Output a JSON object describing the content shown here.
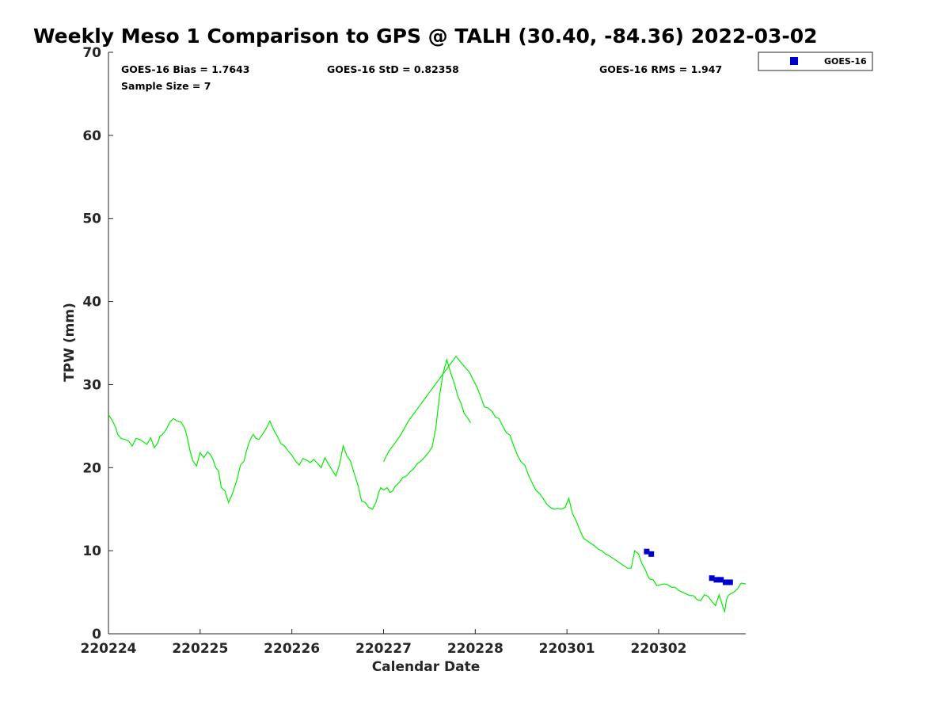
{
  "chart_data": {
    "type": "line",
    "title": "Weekly Meso 1 Comparison to GPS @ TALH (30.40, -84.36) 2022-03-02",
    "xlabel": "Calendar Date",
    "ylabel": "TPW (mm)",
    "x_tick_labels": [
      "220224",
      "220225",
      "220226",
      "220227",
      "220228",
      "220301",
      "220302"
    ],
    "x_tick_days": [
      0,
      1,
      2,
      3,
      4,
      5,
      6
    ],
    "xlim_days": [
      0,
      6.95
    ],
    "ylim": [
      0,
      70
    ],
    "y_ticks": [
      0,
      10,
      20,
      30,
      40,
      50,
      60,
      70
    ],
    "stats": {
      "bias": "GOES-16 Bias = 1.7643",
      "std": "GOES-16 StD = 0.82358",
      "rms": "GOES-16 RMS = 1.947",
      "sample": "Sample Size = 7"
    },
    "legend": {
      "label": "GOES-16",
      "placement": "top-right outside"
    },
    "colors": {
      "gps_line": "#00ee00",
      "goes_marker": "#0000cc",
      "axis": "#262626"
    },
    "series": [
      {
        "role": "gps",
        "x_days": [
          0.0,
          0.04,
          0.08,
          0.1,
          0.14,
          0.18,
          0.22,
          0.26,
          0.3,
          0.34,
          0.38,
          0.42,
          0.46,
          0.5,
          0.54,
          0.56,
          0.58,
          0.61,
          0.63,
          0.67,
          0.71,
          0.75,
          0.79,
          0.83,
          0.86,
          0.89,
          0.92,
          0.96,
          1.0,
          1.04,
          1.08,
          1.11,
          1.14,
          1.17,
          1.2,
          1.23,
          1.27,
          1.31,
          1.35,
          1.4,
          1.44,
          1.48,
          1.5,
          1.53,
          1.56,
          1.58,
          1.61,
          1.64,
          1.68,
          1.72,
          1.76,
          1.8,
          1.84,
          1.88,
          1.92,
          1.96,
          2.0,
          2.04,
          2.08,
          2.12,
          2.16,
          2.2,
          2.24,
          2.28,
          2.32,
          2.36,
          2.4,
          2.44,
          2.48,
          2.52,
          2.56,
          2.6,
          2.64,
          2.68,
          2.72,
          2.76,
          2.8,
          2.84,
          2.88,
          2.92,
          2.95,
          2.97,
          3.0,
          3.04,
          3.07,
          3.1,
          3.13,
          3.17,
          3.21,
          3.25,
          3.29,
          3.33,
          3.37,
          3.41,
          3.45,
          3.49,
          3.53,
          3.57,
          3.61,
          3.65,
          3.69,
          3.73,
          3.77,
          3.81,
          3.85,
          3.88,
          3.91,
          3.95
        ],
        "y": [
          26.4,
          25.7,
          24.8,
          24.0,
          23.5,
          23.4,
          23.2,
          22.6,
          23.5,
          23.4,
          23.1,
          22.8,
          23.6,
          22.4,
          23.0,
          23.8,
          23.9,
          24.3,
          24.6,
          25.5,
          25.9,
          25.6,
          25.5,
          24.8,
          23.6,
          22.0,
          20.8,
          20.2,
          21.8,
          21.2,
          21.9,
          21.6,
          21.0,
          20.0,
          19.6,
          17.6,
          17.2,
          15.8,
          16.8,
          18.5,
          20.3,
          20.8,
          21.8,
          22.9,
          23.7,
          24.0,
          23.5,
          23.4,
          24.0,
          24.7,
          25.6,
          24.6,
          23.8,
          22.9,
          22.6,
          22.0,
          21.5,
          20.8,
          20.3,
          21.1,
          20.9,
          20.6,
          21.0,
          20.5,
          20.0,
          21.2,
          20.4,
          19.7,
          19.0,
          20.4,
          22.6,
          21.4,
          20.8,
          19.3,
          17.9,
          16.0,
          15.8,
          15.2,
          15.0,
          15.9,
          17.1,
          17.6,
          17.3,
          17.6,
          17.0,
          17.2,
          17.8,
          18.2,
          18.8,
          19.0,
          19.5,
          19.9,
          20.5,
          20.8,
          21.3,
          21.8,
          22.5,
          24.8,
          28.6,
          31.4,
          33.0,
          31.5,
          30.2,
          28.6,
          27.6,
          26.5,
          26.1,
          25.4
        ]
      },
      {
        "role": "gps",
        "x_days": [
          3.0,
          3.03,
          3.06,
          3.1,
          3.14,
          3.18,
          3.21,
          3.24,
          3.27,
          3.31,
          3.35,
          3.39,
          3.43,
          3.47,
          3.51,
          3.55,
          3.59,
          3.63,
          3.67,
          3.71,
          3.75,
          3.79,
          3.82,
          3.85,
          3.88,
          3.91,
          3.93,
          3.95,
          3.98,
          4.02,
          4.06,
          4.1,
          4.14,
          4.18,
          4.22,
          4.26,
          4.3,
          4.34,
          4.38,
          4.42,
          4.46,
          4.5,
          4.54,
          4.58,
          4.62,
          4.66,
          4.7,
          4.74,
          4.78,
          4.82,
          4.86,
          4.9,
          4.94,
          4.98,
          5.02,
          5.06,
          5.1,
          5.14,
          5.18,
          5.22,
          5.26,
          5.3,
          5.34,
          5.38,
          5.42,
          5.46,
          5.5,
          5.54,
          5.58,
          5.62,
          5.66,
          5.7,
          5.74,
          5.78,
          5.82,
          5.86,
          5.88,
          5.9,
          5.94,
          5.98,
          6.02,
          6.06,
          6.1,
          6.14,
          6.18,
          6.22,
          6.26,
          6.3,
          6.34,
          6.38,
          6.42,
          6.46,
          6.5,
          6.54,
          6.58,
          6.62,
          6.66,
          6.7,
          6.72,
          6.74,
          6.76,
          6.78,
          6.82,
          6.86,
          6.9,
          6.95
        ],
        "y": [
          20.7,
          21.4,
          22.0,
          22.6,
          23.2,
          23.8,
          24.4,
          25.0,
          25.6,
          26.2,
          26.8,
          27.4,
          28.0,
          28.6,
          29.2,
          29.8,
          30.4,
          31.0,
          31.6,
          32.2,
          32.8,
          33.4,
          33.0,
          32.6,
          32.2,
          31.8,
          31.6,
          31.2,
          30.5,
          29.7,
          28.5,
          27.3,
          27.2,
          26.8,
          26.1,
          25.9,
          25.0,
          24.2,
          23.9,
          22.6,
          21.5,
          20.7,
          20.3,
          19.1,
          18.2,
          17.3,
          16.9,
          16.3,
          15.6,
          15.2,
          15.0,
          15.1,
          15.0,
          15.2,
          16.3,
          14.5,
          13.6,
          12.5,
          11.5,
          11.2,
          10.9,
          10.6,
          10.2,
          10.0,
          9.6,
          9.4,
          9.1,
          8.8,
          8.5,
          8.2,
          7.9,
          7.9,
          10.0,
          9.6,
          8.4,
          7.6,
          7.0,
          6.6,
          6.5,
          5.8,
          5.9,
          6.0,
          5.9,
          5.6,
          5.6,
          5.2,
          5.0,
          4.8,
          4.6,
          4.6,
          4.1,
          4.0,
          4.7,
          4.5,
          3.9,
          3.4,
          4.7,
          3.3,
          2.7,
          4.1,
          4.6,
          4.8,
          5.0,
          5.4,
          6.1,
          6.0
        ]
      },
      {
        "role": "goes16",
        "x_days": [
          5.87,
          5.92,
          6.58,
          6.63,
          6.68,
          6.73,
          6.78
        ],
        "y": [
          9.9,
          9.6,
          6.7,
          6.5,
          6.5,
          6.2,
          6.2
        ]
      }
    ]
  }
}
